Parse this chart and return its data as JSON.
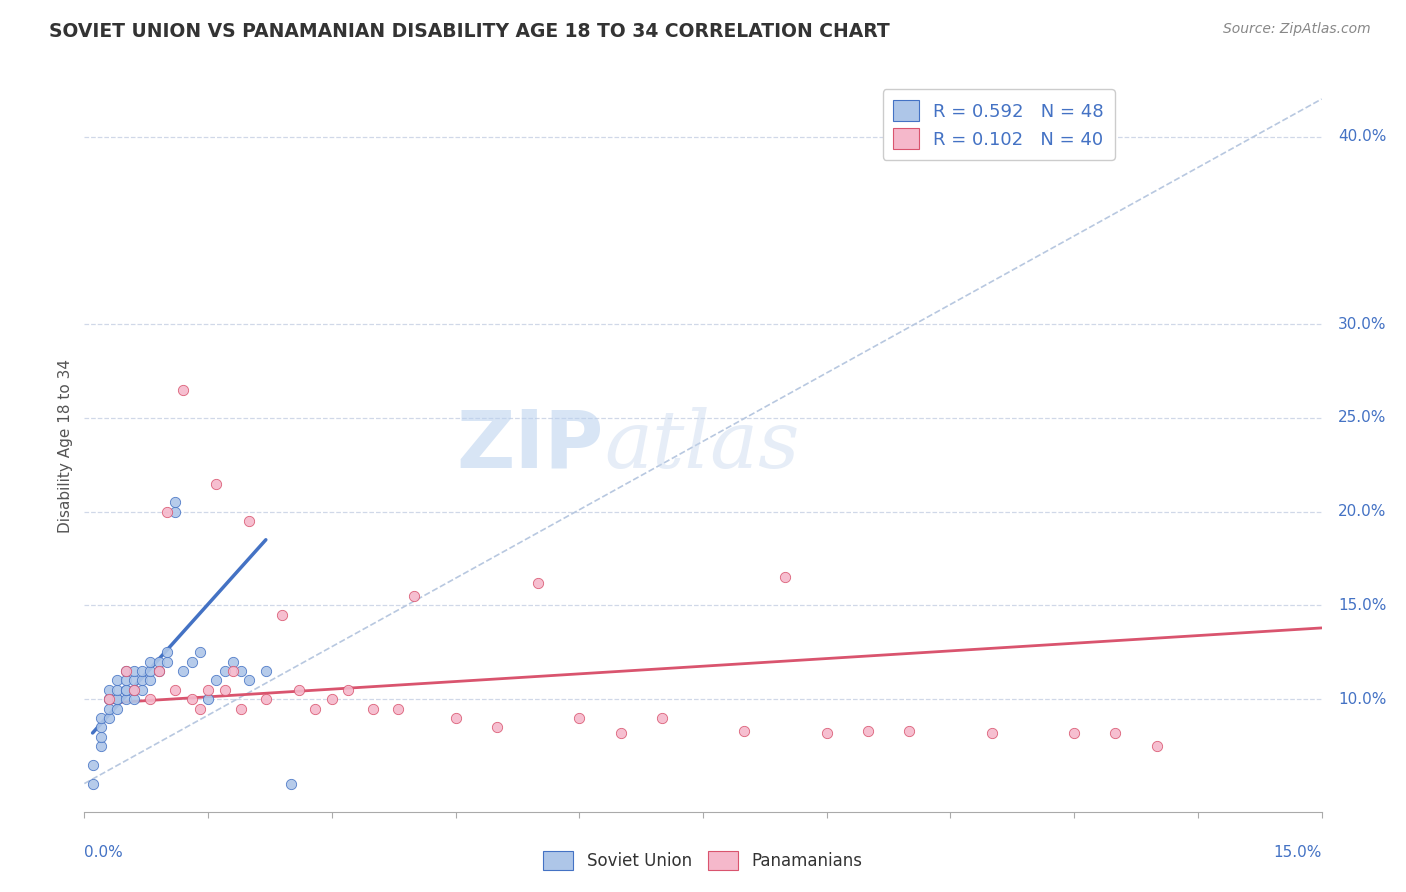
{
  "title": "SOVIET UNION VS PANAMANIAN DISABILITY AGE 18 TO 34 CORRELATION CHART",
  "source": "Source: ZipAtlas.com",
  "ylabel": "Disability Age 18 to 34",
  "xlim": [
    0.0,
    0.15
  ],
  "ylim": [
    0.04,
    0.43
  ],
  "right_ytick_vals": [
    0.1,
    0.15,
    0.2,
    0.25,
    0.3,
    0.4
  ],
  "right_ytick_labels": [
    "10.0%",
    "15.0%",
    "20.0%",
    "25.0%",
    "30.0%",
    "40.0%"
  ],
  "soviet_R": 0.592,
  "soviet_N": 48,
  "panama_R": 0.102,
  "panama_N": 40,
  "soviet_color": "#aec6e8",
  "soviet_edge_color": "#4472c4",
  "soviet_line_color": "#4472c4",
  "panama_color": "#f5b8cb",
  "panama_edge_color": "#d9546e",
  "panama_line_color": "#d9546e",
  "watermark_color": "#dce8f5",
  "grid_color": "#d0d8e8",
  "bg_color": "#ffffff",
  "soviet_scatter_x": [
    0.001,
    0.001,
    0.002,
    0.002,
    0.002,
    0.002,
    0.003,
    0.003,
    0.003,
    0.003,
    0.003,
    0.004,
    0.004,
    0.004,
    0.004,
    0.004,
    0.005,
    0.005,
    0.005,
    0.005,
    0.005,
    0.006,
    0.006,
    0.006,
    0.006,
    0.007,
    0.007,
    0.007,
    0.008,
    0.008,
    0.008,
    0.009,
    0.009,
    0.01,
    0.01,
    0.011,
    0.011,
    0.012,
    0.013,
    0.014,
    0.015,
    0.016,
    0.017,
    0.018,
    0.019,
    0.02,
    0.022,
    0.025
  ],
  "soviet_scatter_y": [
    0.055,
    0.065,
    0.075,
    0.08,
    0.085,
    0.09,
    0.09,
    0.095,
    0.1,
    0.1,
    0.105,
    0.095,
    0.1,
    0.1,
    0.105,
    0.11,
    0.1,
    0.105,
    0.105,
    0.11,
    0.115,
    0.1,
    0.105,
    0.11,
    0.115,
    0.105,
    0.11,
    0.115,
    0.11,
    0.115,
    0.12,
    0.115,
    0.12,
    0.12,
    0.125,
    0.2,
    0.205,
    0.115,
    0.12,
    0.125,
    0.1,
    0.11,
    0.115,
    0.12,
    0.115,
    0.11,
    0.115,
    0.055
  ],
  "panama_scatter_x": [
    0.003,
    0.005,
    0.006,
    0.008,
    0.009,
    0.01,
    0.011,
    0.012,
    0.013,
    0.014,
    0.015,
    0.016,
    0.017,
    0.018,
    0.019,
    0.02,
    0.022,
    0.024,
    0.026,
    0.028,
    0.03,
    0.032,
    0.035,
    0.038,
    0.04,
    0.045,
    0.05,
    0.055,
    0.06,
    0.065,
    0.07,
    0.08,
    0.085,
    0.09,
    0.095,
    0.1,
    0.11,
    0.12,
    0.125,
    0.13
  ],
  "panama_scatter_y": [
    0.1,
    0.115,
    0.105,
    0.1,
    0.115,
    0.2,
    0.105,
    0.265,
    0.1,
    0.095,
    0.105,
    0.215,
    0.105,
    0.115,
    0.095,
    0.195,
    0.1,
    0.145,
    0.105,
    0.095,
    0.1,
    0.105,
    0.095,
    0.095,
    0.155,
    0.09,
    0.085,
    0.162,
    0.09,
    0.082,
    0.09,
    0.083,
    0.165,
    0.082,
    0.083,
    0.083,
    0.082,
    0.082,
    0.082,
    0.075
  ],
  "dashed_line_x": [
    0.0,
    0.15
  ],
  "dashed_line_y": [
    0.055,
    0.42
  ],
  "soviet_trendline_x": [
    0.001,
    0.022
  ],
  "soviet_trendline_y": [
    0.082,
    0.185
  ],
  "panama_trendline_x": [
    0.003,
    0.15
  ],
  "panama_trendline_y": [
    0.098,
    0.138
  ]
}
